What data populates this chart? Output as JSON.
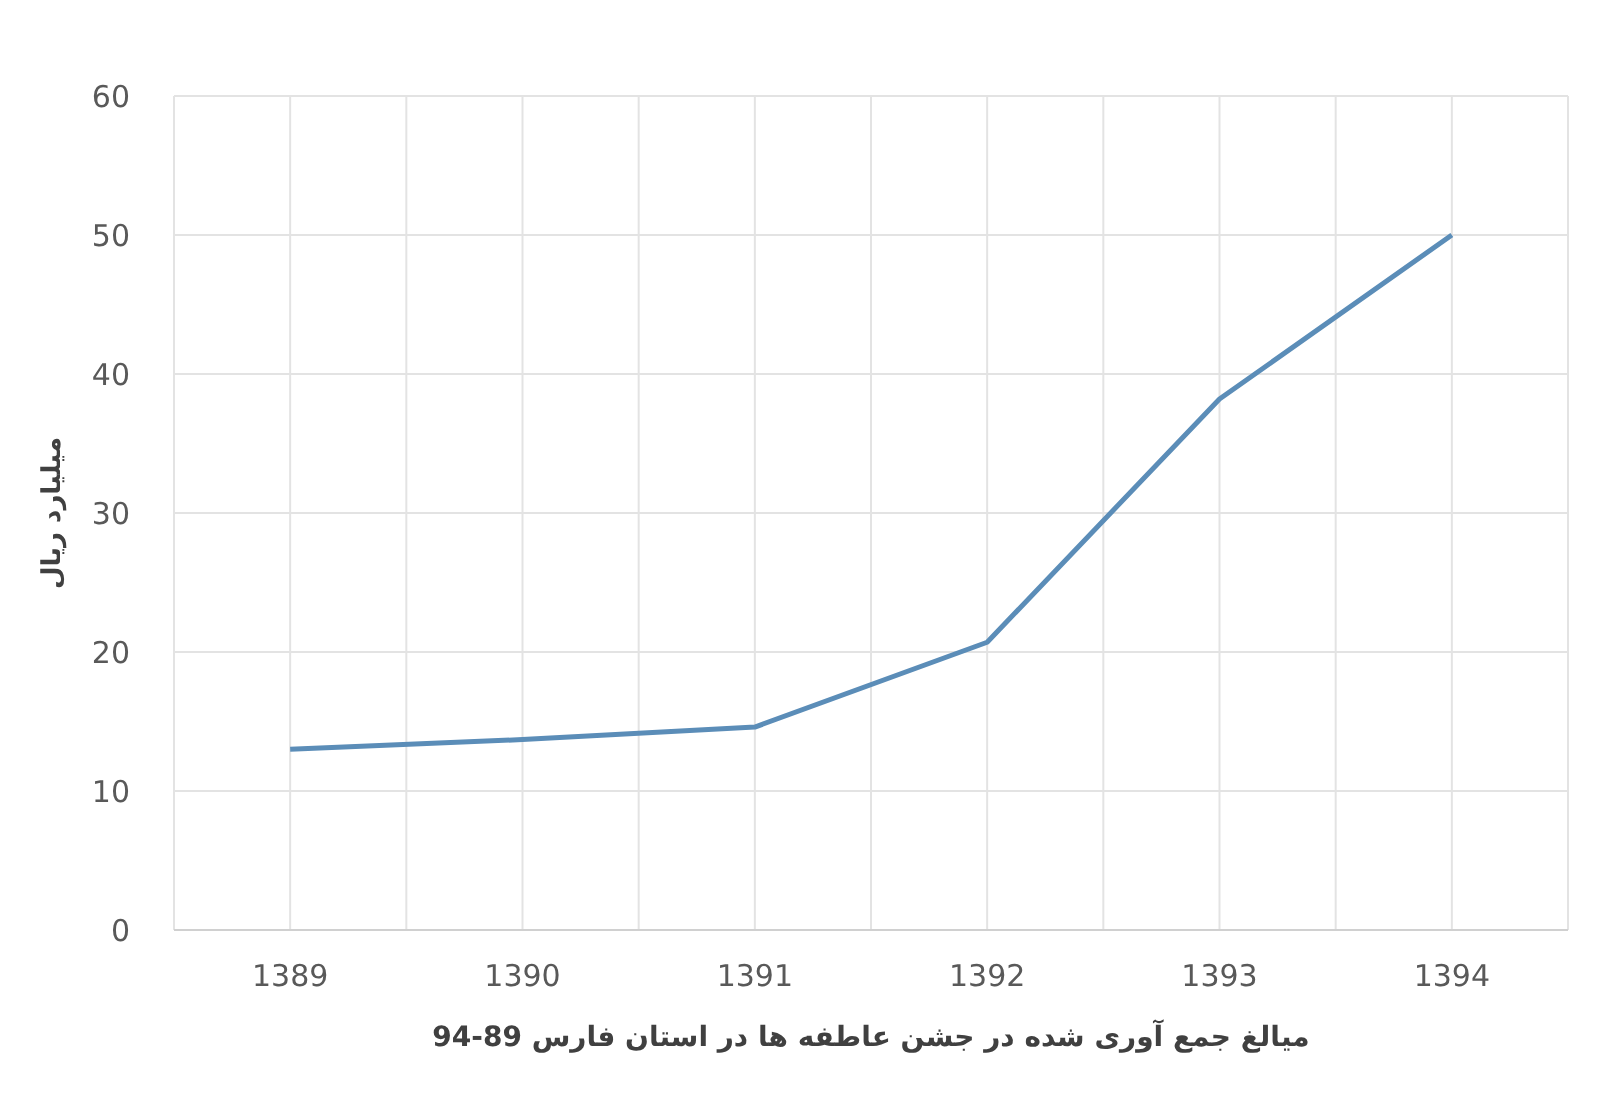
{
  "chart_data": {
    "type": "line",
    "xlabel": "میالغ جمع آوری شده در جشن عاطفه ها در استان فارس 89-94",
    "ylabel": "میلیارد ریال",
    "x": [
      1389,
      1390,
      1391,
      1392,
      1393,
      1394
    ],
    "series": [
      {
        "color": "#5b8db8",
        "values": [
          13.0,
          13.7,
          14.6,
          20.7,
          38.2,
          50.0
        ]
      }
    ],
    "xlim": [
      1388.5,
      1394.5
    ],
    "xticks": [
      {
        "value": 1388.5,
        "label": null
      },
      1389,
      {
        "value": 1389.5,
        "label": null
      },
      1390,
      {
        "value": 1390.5,
        "label": null
      },
      1391,
      {
        "value": 1391.5,
        "label": null
      },
      1392,
      {
        "value": 1392.5,
        "label": null
      },
      1393,
      {
        "value": 1393.5,
        "label": null
      },
      1394,
      {
        "value": 1394.5,
        "label": null
      }
    ],
    "ylim": [
      0,
      60
    ],
    "yticks": [
      0,
      10,
      20,
      30,
      40,
      50,
      60
    ],
    "grid": true,
    "marker": "none",
    "line_style": "solid"
  }
}
